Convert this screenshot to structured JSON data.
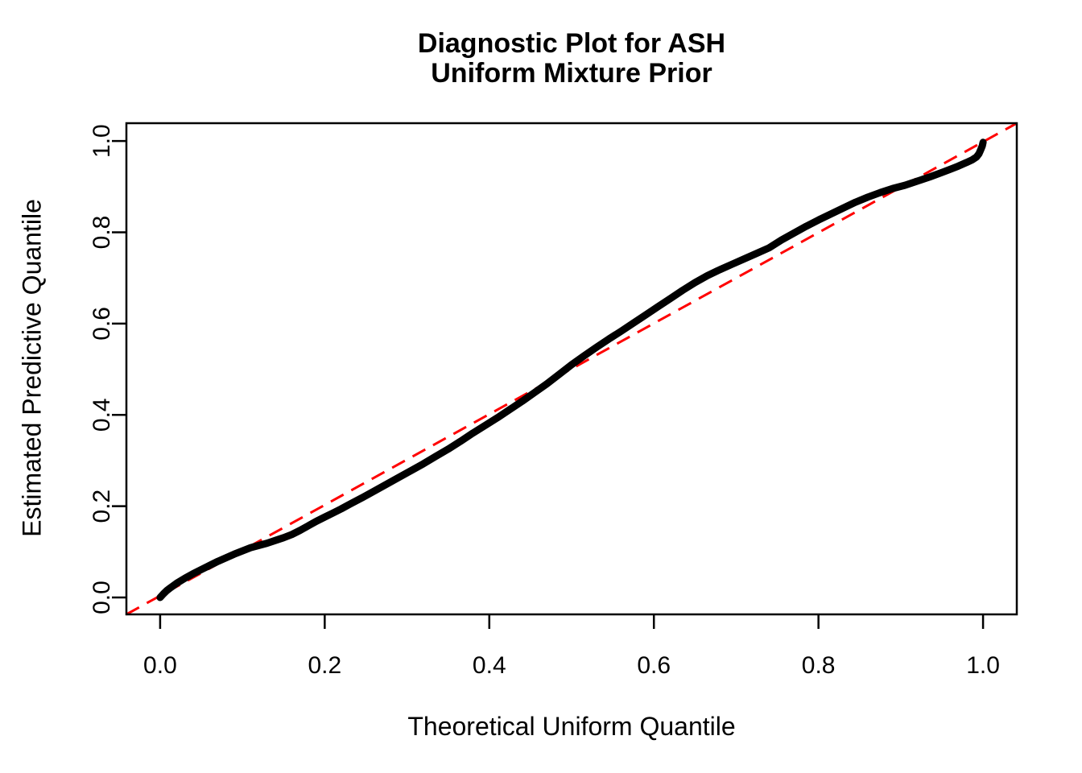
{
  "chart_data": {
    "type": "line",
    "title_line1": "Diagnostic Plot for ASH",
    "title_line2": "Uniform Mixture Prior",
    "xlabel": "Theoretical Uniform Quantile",
    "ylabel": "Estimated Predictive Quantile",
    "xlim": [
      -0.041,
      1.041
    ],
    "ylim": [
      -0.037,
      1.039
    ],
    "grid": false,
    "legend_position": "none",
    "background_color": "#ffffff",
    "axis_color": "#000000",
    "x_ticks": {
      "values": [
        0,
        0.2,
        0.4,
        0.6,
        0.8,
        1.0
      ],
      "labels": [
        "0.0",
        "0.2",
        "0.4",
        "0.6",
        "0.8",
        "1.0"
      ]
    },
    "y_ticks": {
      "values": [
        0,
        0.2,
        0.4,
        0.6,
        0.8,
        1.0
      ],
      "labels": [
        "0.0",
        "0.2",
        "0.4",
        "0.6",
        "0.8",
        "1.0"
      ]
    },
    "series": [
      {
        "name": "estimated-predictive-quantile-curve",
        "color": "#000000",
        "style": "solid-thick",
        "points": [
          [
            0.0,
            0.0
          ],
          [
            0.004,
            0.008
          ],
          [
            0.008,
            0.015
          ],
          [
            0.013,
            0.022
          ],
          [
            0.02,
            0.031
          ],
          [
            0.03,
            0.042
          ],
          [
            0.04,
            0.052
          ],
          [
            0.05,
            0.061
          ],
          [
            0.06,
            0.07
          ],
          [
            0.07,
            0.079
          ],
          [
            0.08,
            0.087
          ],
          [
            0.09,
            0.095
          ],
          [
            0.1,
            0.102
          ],
          [
            0.11,
            0.109
          ],
          [
            0.12,
            0.114
          ],
          [
            0.13,
            0.119
          ],
          [
            0.14,
            0.125
          ],
          [
            0.15,
            0.131
          ],
          [
            0.16,
            0.138
          ],
          [
            0.17,
            0.147
          ],
          [
            0.18,
            0.157
          ],
          [
            0.19,
            0.167
          ],
          [
            0.2,
            0.176
          ],
          [
            0.21,
            0.185
          ],
          [
            0.22,
            0.194
          ],
          [
            0.23,
            0.204
          ],
          [
            0.245,
            0.218
          ],
          [
            0.26,
            0.233
          ],
          [
            0.275,
            0.248
          ],
          [
            0.29,
            0.263
          ],
          [
            0.305,
            0.278
          ],
          [
            0.32,
            0.293
          ],
          [
            0.335,
            0.309
          ],
          [
            0.35,
            0.325
          ],
          [
            0.365,
            0.342
          ],
          [
            0.38,
            0.36
          ],
          [
            0.395,
            0.377
          ],
          [
            0.41,
            0.394
          ],
          [
            0.425,
            0.412
          ],
          [
            0.44,
            0.43
          ],
          [
            0.455,
            0.449
          ],
          [
            0.47,
            0.468
          ],
          [
            0.485,
            0.489
          ],
          [
            0.5,
            0.51
          ],
          [
            0.515,
            0.529
          ],
          [
            0.53,
            0.548
          ],
          [
            0.545,
            0.566
          ],
          [
            0.56,
            0.583
          ],
          [
            0.575,
            0.601
          ],
          [
            0.59,
            0.619
          ],
          [
            0.605,
            0.637
          ],
          [
            0.62,
            0.655
          ],
          [
            0.635,
            0.673
          ],
          [
            0.65,
            0.69
          ],
          [
            0.665,
            0.705
          ],
          [
            0.68,
            0.718
          ],
          [
            0.695,
            0.73
          ],
          [
            0.71,
            0.742
          ],
          [
            0.725,
            0.754
          ],
          [
            0.74,
            0.766
          ],
          [
            0.755,
            0.783
          ],
          [
            0.77,
            0.798
          ],
          [
            0.785,
            0.813
          ],
          [
            0.8,
            0.827
          ],
          [
            0.815,
            0.84
          ],
          [
            0.83,
            0.853
          ],
          [
            0.845,
            0.866
          ],
          [
            0.86,
            0.877
          ],
          [
            0.875,
            0.887
          ],
          [
            0.89,
            0.896
          ],
          [
            0.905,
            0.903
          ],
          [
            0.92,
            0.912
          ],
          [
            0.935,
            0.921
          ],
          [
            0.95,
            0.931
          ],
          [
            0.96,
            0.938
          ],
          [
            0.97,
            0.945
          ],
          [
            0.98,
            0.953
          ],
          [
            0.987,
            0.959
          ],
          [
            0.992,
            0.965
          ],
          [
            0.995,
            0.972
          ],
          [
            0.997,
            0.98
          ],
          [
            0.999,
            0.989
          ],
          [
            1.0,
            0.997
          ]
        ]
      }
    ],
    "reference_line": {
      "name": "identity-line",
      "equation": "y = x",
      "color": "#FF0000",
      "style": "dashed"
    }
  }
}
